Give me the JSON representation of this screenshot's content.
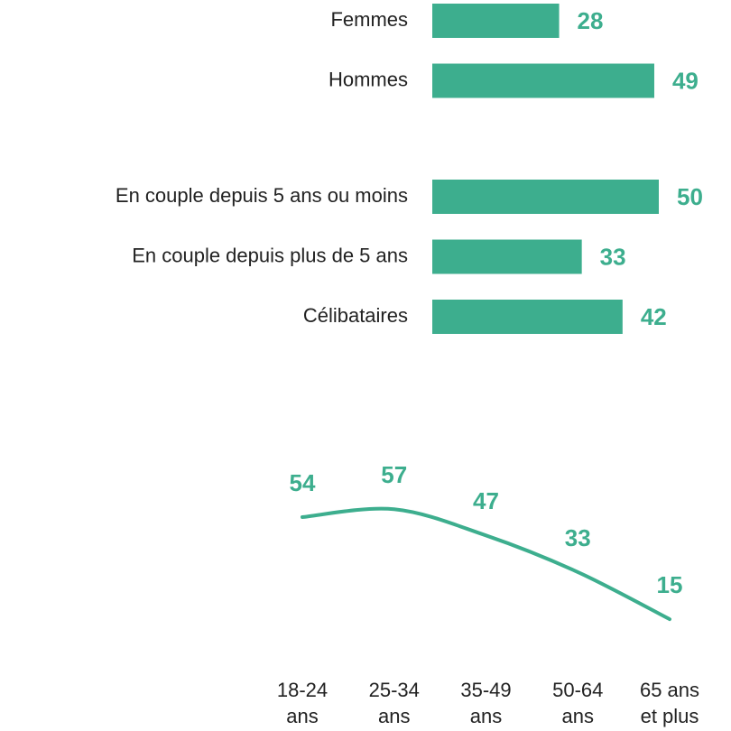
{
  "chart_data": [
    {
      "type": "bar",
      "categories": [
        "Femmes",
        "Hommes"
      ],
      "values": [
        28,
        49
      ],
      "color": "#3dae8e"
    },
    {
      "type": "bar",
      "categories": [
        "En couple depuis 5 ans ou moins",
        "En couple depuis plus de 5 ans",
        "Célibataires"
      ],
      "values": [
        50,
        33,
        42
      ],
      "color": "#3dae8e"
    },
    {
      "type": "line",
      "categories": [
        "18-24 ans",
        "25-34 ans",
        "35-49 ans",
        "50-64 ans",
        "65 ans et plus"
      ],
      "values": [
        54,
        57,
        47,
        33,
        15
      ],
      "color": "#3dae8e"
    }
  ]
}
